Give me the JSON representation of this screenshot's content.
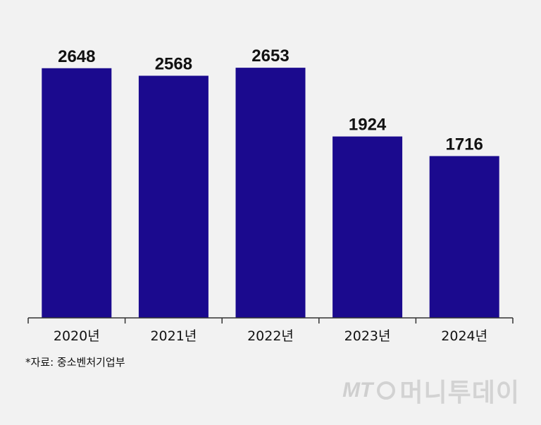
{
  "chart_data": {
    "type": "bar",
    "categories": [
      "2020년",
      "2021년",
      "2022년",
      "2023년",
      "2024년"
    ],
    "values": [
      2648,
      2568,
      2653,
      1924,
      1716
    ],
    "value_labels": [
      "2648",
      "2568",
      "2653",
      "1924",
      "1716"
    ],
    "title": "",
    "xlabel": "",
    "ylabel": "",
    "ylim": [
      0,
      3050
    ],
    "grid": false,
    "legend": "none",
    "bar_color": "#1b0a8e"
  },
  "source_note": "*자료: 중소벤처기업부",
  "watermark": {
    "mt": "MT",
    "name": "머니투데이"
  }
}
